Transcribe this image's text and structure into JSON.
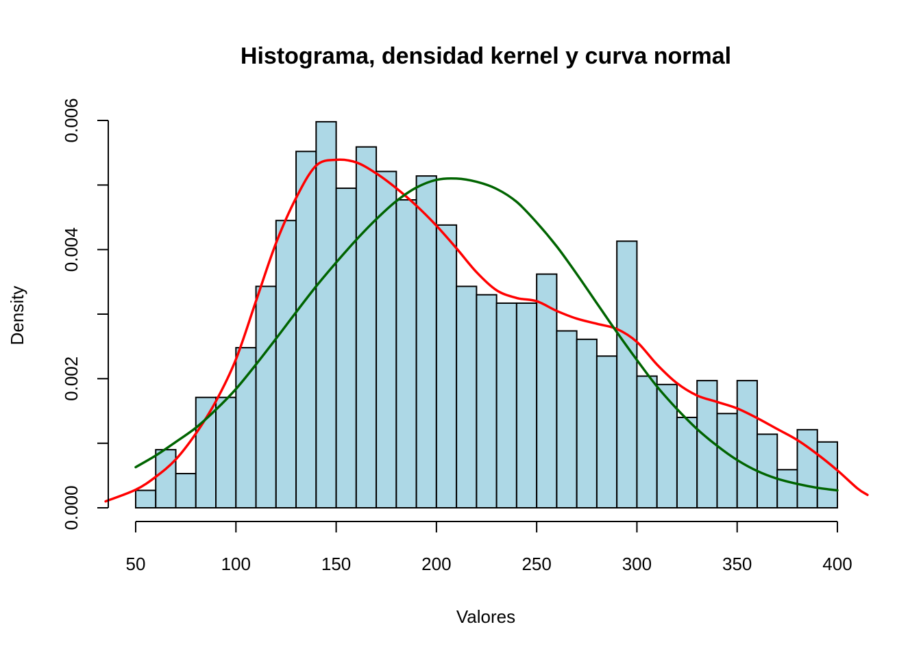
{
  "chart_data": {
    "type": "bar",
    "title": "Histograma, densidad kernel y curva normal",
    "xlabel": "Valores",
    "ylabel": "Density",
    "xlim": [
      50,
      400
    ],
    "ylim": [
      0,
      0.006
    ],
    "x_ticks": [
      "50",
      "100",
      "150",
      "200",
      "250",
      "300",
      "350",
      "400"
    ],
    "y_ticks": [
      "0.000",
      "0.002",
      "0.004",
      "0.006"
    ],
    "grid": false,
    "bar_color": "#add8e6",
    "bin_width": 10,
    "bins": [
      50,
      60,
      70,
      80,
      90,
      100,
      110,
      120,
      130,
      140,
      150,
      160,
      170,
      180,
      190,
      200,
      210,
      220,
      230,
      240,
      250,
      260,
      270,
      280,
      290,
      300,
      310,
      320,
      330,
      340,
      350,
      360,
      370,
      380,
      390
    ],
    "values": [
      0.00027,
      0.0009,
      0.00053,
      0.00171,
      0.00171,
      0.00248,
      0.00343,
      0.00445,
      0.00552,
      0.00598,
      0.00495,
      0.00559,
      0.00521,
      0.00477,
      0.00514,
      0.00438,
      0.00343,
      0.0033,
      0.00317,
      0.00317,
      0.00362,
      0.00274,
      0.00261,
      0.00235,
      0.00413,
      0.00204,
      0.00191,
      0.0014,
      0.00197,
      0.00146,
      0.00197,
      0.00114,
      0.00059,
      0.00121,
      0.00102
    ],
    "series": [
      {
        "color": "#ff0000",
        "x": [
          35,
          50,
          60,
          70,
          80,
          90,
          100,
          110,
          120,
          130,
          140,
          150,
          160,
          170,
          180,
          190,
          200,
          210,
          220,
          230,
          240,
          250,
          260,
          270,
          280,
          290,
          300,
          310,
          320,
          330,
          340,
          350,
          360,
          370,
          380,
          390,
          400,
          410,
          415
        ],
        "y": [
          0.0001,
          0.00028,
          0.00048,
          0.00075,
          0.00115,
          0.00165,
          0.0023,
          0.0032,
          0.0041,
          0.0048,
          0.0053,
          0.00539,
          0.00535,
          0.00518,
          0.00495,
          0.00468,
          0.00437,
          0.00402,
          0.00365,
          0.00337,
          0.00325,
          0.0032,
          0.00305,
          0.00293,
          0.00285,
          0.00277,
          0.00257,
          0.00222,
          0.00193,
          0.00174,
          0.00164,
          0.00154,
          0.00139,
          0.00122,
          0.00105,
          0.00083,
          0.00058,
          0.0003,
          0.0002
        ]
      },
      {
        "color": "#006400",
        "x": [
          50,
          60,
          70,
          80,
          90,
          100,
          110,
          120,
          130,
          140,
          150,
          160,
          170,
          180,
          190,
          200,
          210,
          220,
          230,
          240,
          250,
          260,
          270,
          280,
          290,
          300,
          310,
          320,
          330,
          340,
          350,
          360,
          370,
          380,
          390,
          400
        ],
        "y": [
          0.00063,
          0.00081,
          0.00102,
          0.00124,
          0.00152,
          0.00184,
          0.00222,
          0.00262,
          0.00303,
          0.00343,
          0.0038,
          0.00415,
          0.00447,
          0.00475,
          0.00496,
          0.00508,
          0.0051,
          0.00505,
          0.00494,
          0.00474,
          0.00442,
          0.00405,
          0.00362,
          0.00317,
          0.00272,
          0.00229,
          0.00188,
          0.00153,
          0.00122,
          0.00096,
          0.00074,
          0.00057,
          0.00045,
          0.00037,
          0.00031,
          0.00027
        ]
      }
    ]
  }
}
